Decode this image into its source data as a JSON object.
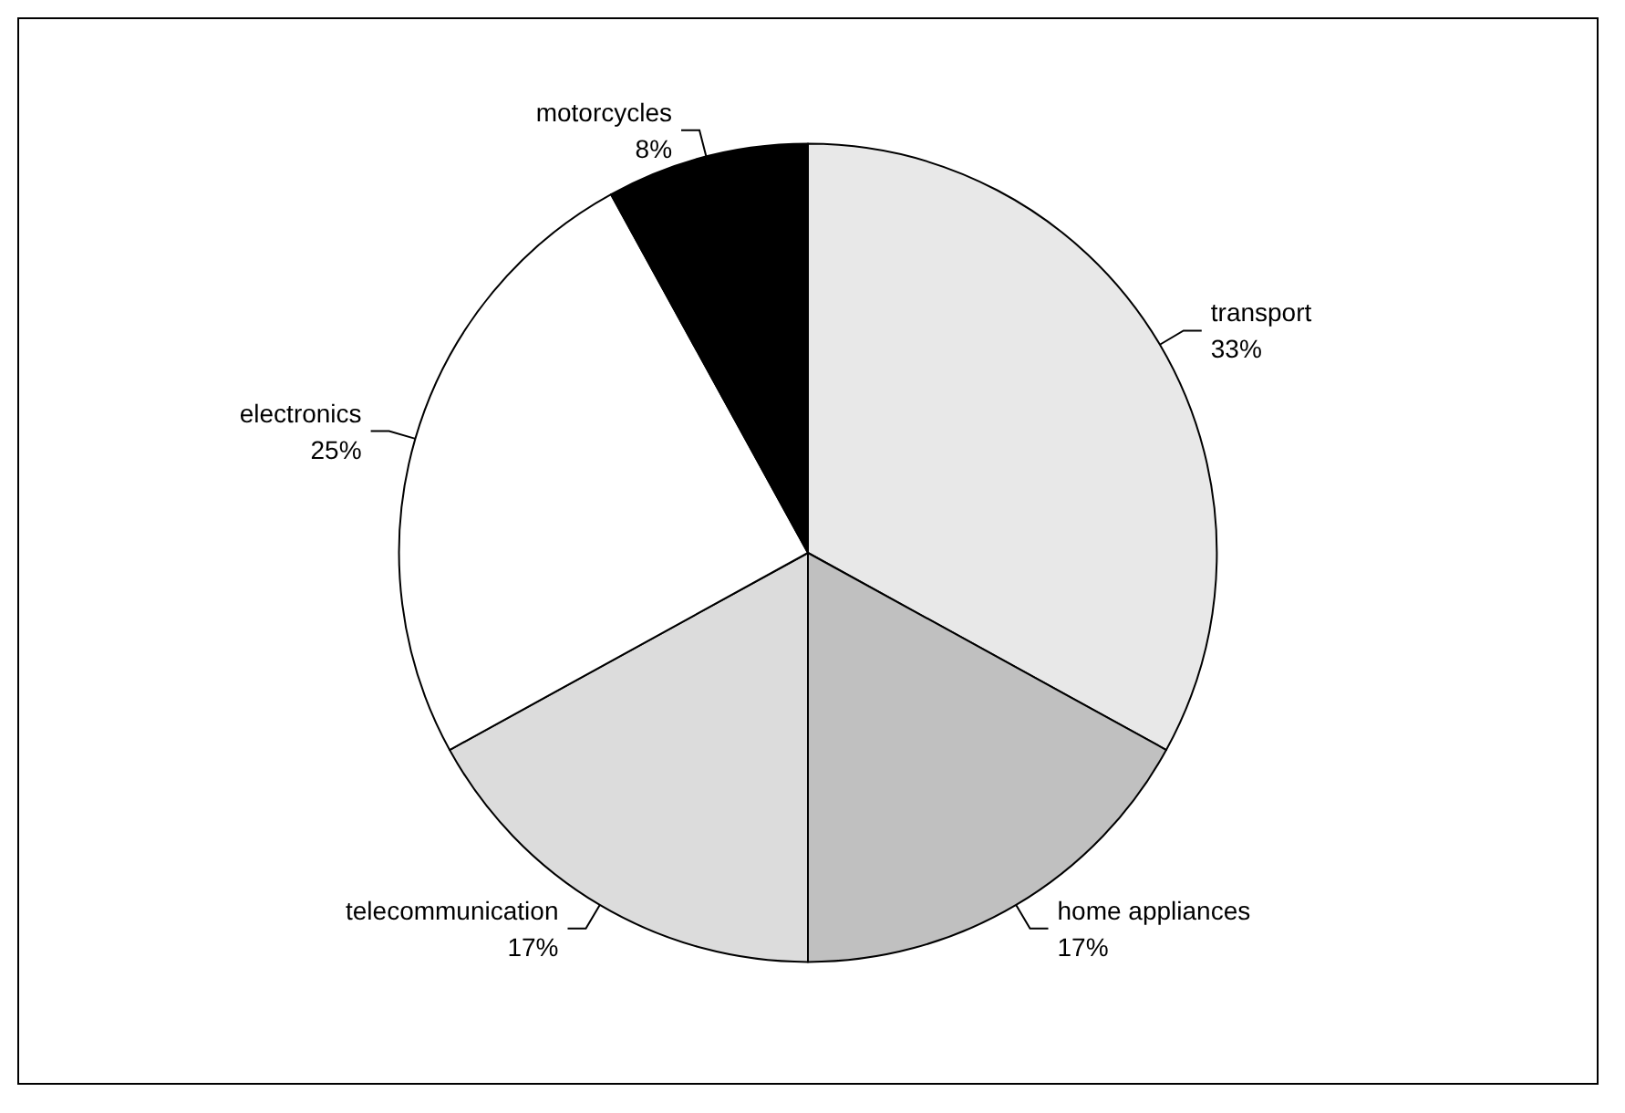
{
  "chart_data": {
    "type": "pie",
    "categories": [
      "transport",
      "home appliances",
      "telecommunication",
      "electronics",
      "motorcycles"
    ],
    "values": [
      33,
      17,
      17,
      25,
      8
    ],
    "value_labels": [
      "33%",
      "17%",
      "17%",
      "25%",
      "8%"
    ],
    "colors": [
      "#e8e8e8",
      "#c0c0c0",
      "#dcdcdc",
      "#ffffff",
      "#000000"
    ],
    "legend": false
  }
}
